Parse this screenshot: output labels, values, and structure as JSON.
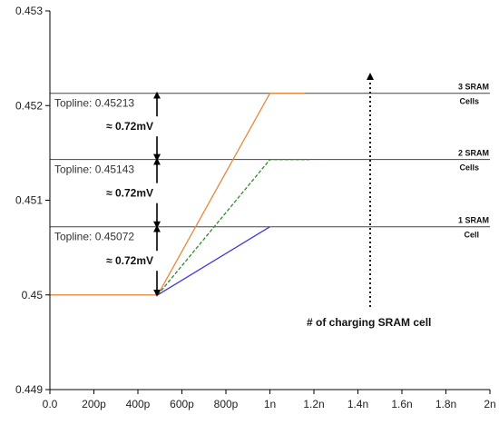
{
  "chart_data": {
    "type": "line",
    "title": "",
    "xlabel": "",
    "ylabel": "",
    "xlim": [
      0,
      2e-09
    ],
    "ylim": [
      0.449,
      0.453
    ],
    "x_ticks": [
      {
        "value": 0,
        "label": "0.0"
      },
      {
        "value": 2e-10,
        "label": "200p"
      },
      {
        "value": 4e-10,
        "label": "400p"
      },
      {
        "value": 6e-10,
        "label": "600p"
      },
      {
        "value": 8e-10,
        "label": "800p"
      },
      {
        "value": 1e-09,
        "label": "1n"
      },
      {
        "value": 1.2e-09,
        "label": "1.2n"
      },
      {
        "value": 1.4e-09,
        "label": "1.4n"
      },
      {
        "value": 1.6e-09,
        "label": "1.6n"
      },
      {
        "value": 1.8e-09,
        "label": "1.8n"
      },
      {
        "value": 2e-09,
        "label": "2n"
      }
    ],
    "y_ticks": [
      {
        "value": 0.449,
        "label": "0.449"
      },
      {
        "value": 0.45,
        "label": "0.45"
      },
      {
        "value": 0.451,
        "label": "0.451"
      },
      {
        "value": 0.452,
        "label": "0.452"
      },
      {
        "value": 0.453,
        "label": "0.453"
      }
    ],
    "series": [
      {
        "color": "#e8883a",
        "dash": false,
        "points": [
          [
            0,
            0.45
          ],
          [
            4.9e-10,
            0.45
          ],
          [
            1e-09,
            0.45213
          ],
          [
            1.16e-09,
            0.45213
          ]
        ]
      },
      {
        "color": "#2e8b2e",
        "dash": true,
        "points": [
          [
            4.9e-10,
            0.45
          ],
          [
            1e-09,
            0.45143
          ],
          [
            1.18e-09,
            0.45143
          ]
        ]
      },
      {
        "color": "#3a3ad6",
        "dash": false,
        "points": [
          [
            4.9e-10,
            0.45
          ],
          [
            1e-09,
            0.45072
          ]
        ]
      }
    ],
    "toplines": [
      {
        "value": 0.45213,
        "label": "Topline: 0.45213",
        "cells_line1": "3 SRAM",
        "cells_line2": "Cells"
      },
      {
        "value": 0.45143,
        "label": "Topline: 0.45143",
        "cells_line1": "2 SRAM",
        "cells_line2": "Cells"
      },
      {
        "value": 0.45072,
        "label": "Topline: 0.45072",
        "cells_line1": "1 SRAM",
        "cells_line2": "Cell"
      }
    ],
    "difference_label": "≈ 0.72mV",
    "annotation": "# of charging SRAM cell",
    "grid": false,
    "legend": "none"
  }
}
